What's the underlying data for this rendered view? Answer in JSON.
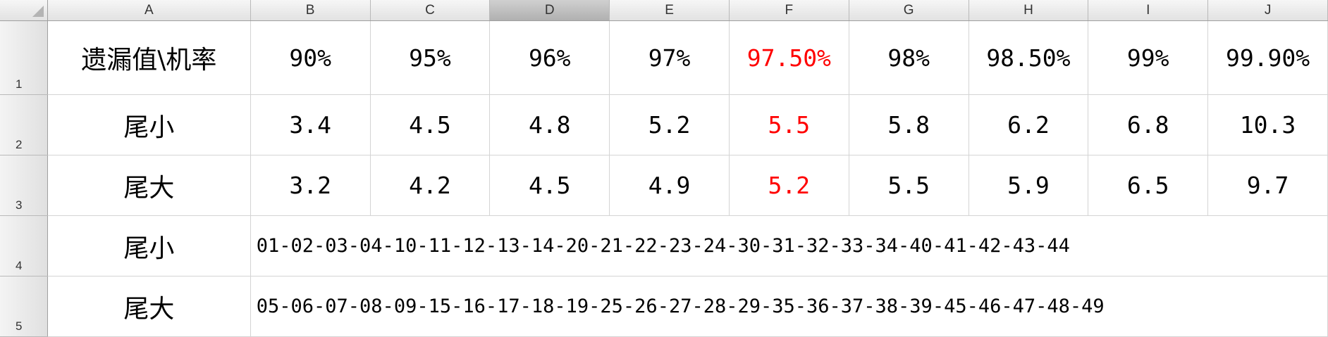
{
  "columns": [
    "A",
    "B",
    "C",
    "D",
    "E",
    "F",
    "G",
    "H",
    "I",
    "J"
  ],
  "rows": [
    {
      "num": "1",
      "cells": [
        "遗漏值\\机率",
        "90%",
        "95%",
        "96%",
        "97%",
        "97.50%",
        "98%",
        "98.50%",
        "99%",
        "99.90%"
      ]
    },
    {
      "num": "2",
      "cells": [
        "尾小",
        "3.4",
        "4.5",
        "4.8",
        "5.2",
        "5.5",
        "5.8",
        "6.2",
        "6.8",
        "10.3"
      ]
    },
    {
      "num": "3",
      "cells": [
        "尾大",
        "3.2",
        "4.2",
        "4.5",
        "4.9",
        "5.2",
        "5.5",
        "5.9",
        "6.5",
        "9.7"
      ]
    },
    {
      "num": "4",
      "label": "尾小",
      "merged": "01-02-03-04-10-11-12-13-14-20-21-22-23-24-30-31-32-33-34-40-41-42-43-44"
    },
    {
      "num": "5",
      "label": "尾大",
      "merged": "05-06-07-08-09-15-16-17-18-19-25-26-27-28-29-35-36-37-38-39-45-46-47-48-49"
    }
  ],
  "selected_column": "D",
  "highlight_color": "#ff0000"
}
